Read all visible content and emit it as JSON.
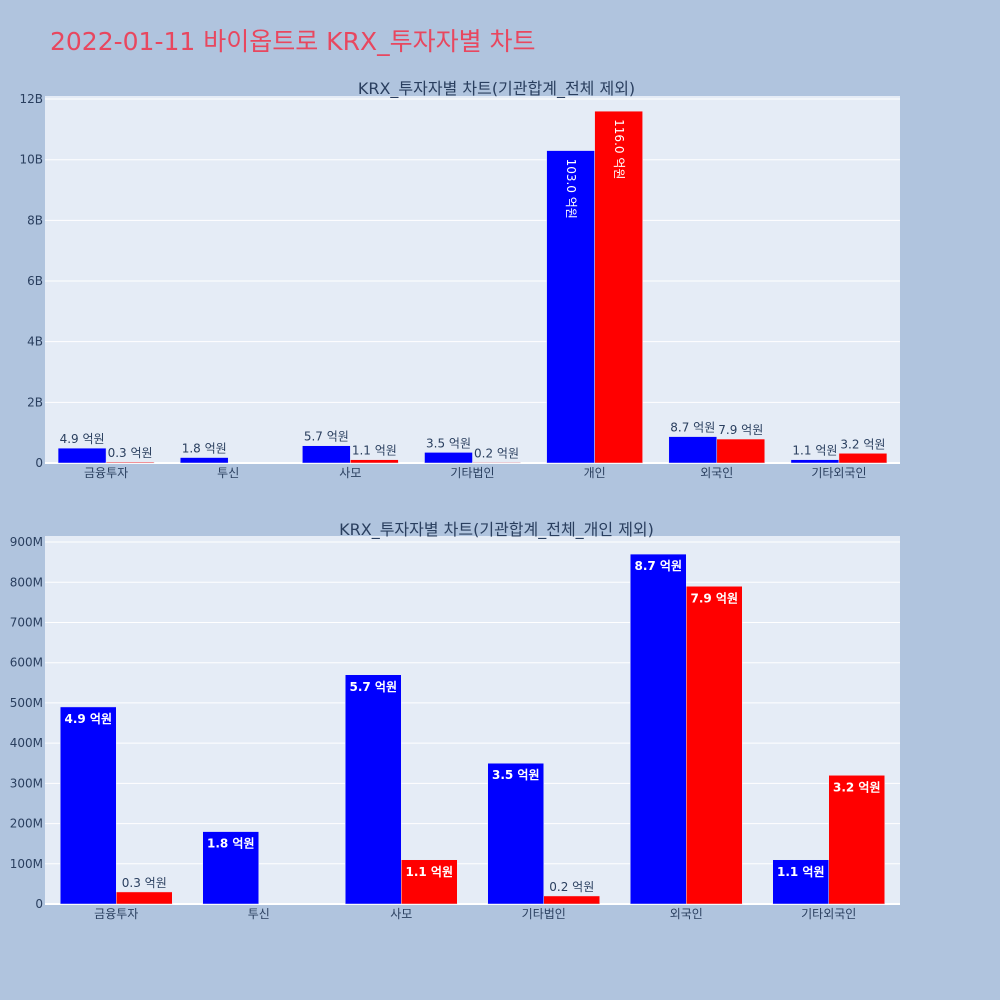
{
  "page": {
    "title": "2022-01-11 바이옵트로 KRX_투자자별 차트"
  },
  "chart_data": [
    {
      "type": "bar",
      "title": "KRX_투자자별 차트(기관합계_전체 제외)",
      "categories": [
        "금융투자",
        "투신",
        "사모",
        "기타법인",
        "개인",
        "외국인",
        "기타외국인"
      ],
      "series": [
        {
          "color": "#0000ff",
          "values": [
            490000000,
            180000000,
            570000000,
            350000000,
            10300000000,
            870000000,
            110000000
          ],
          "labels": [
            "4.9 억원",
            "1.8 억원",
            "5.7 억원",
            "3.5 억원",
            "103.0 억원",
            "8.7 억원",
            "1.1 억원"
          ]
        },
        {
          "color": "#ff0000",
          "values": [
            30000000,
            0,
            110000000,
            20000000,
            11600000000,
            790000000,
            320000000
          ],
          "labels": [
            "0.3 억원",
            "",
            "1.1 억원",
            "0.2 억원",
            "116.0 억원",
            "7.9 억원",
            "3.2 억원"
          ]
        }
      ],
      "yticks": [
        0,
        2000000000,
        4000000000,
        6000000000,
        8000000000,
        10000000000,
        12000000000
      ],
      "ytick_labels": [
        "0",
        "2B",
        "4B",
        "6B",
        "8B",
        "10B",
        "12B"
      ],
      "ylim": [
        0,
        12100000000
      ],
      "xlabel": "",
      "ylabel": "",
      "grid": true
    },
    {
      "type": "bar",
      "title": "KRX_투자자별 차트(기관합계_전체_개인 제외)",
      "categories": [
        "금융투자",
        "투신",
        "사모",
        "기타법인",
        "외국인",
        "기타외국인"
      ],
      "series": [
        {
          "color": "#0000ff",
          "values": [
            490000000,
            180000000,
            570000000,
            350000000,
            870000000,
            110000000
          ],
          "labels": [
            "4.9 억원",
            "1.8 억원",
            "5.7 억원",
            "3.5 억원",
            "8.7 억원",
            "1.1 억원"
          ]
        },
        {
          "color": "#ff0000",
          "values": [
            30000000,
            0,
            110000000,
            20000000,
            790000000,
            320000000
          ],
          "labels": [
            "0.3 억원",
            "",
            "1.1 억원",
            "0.2 억원",
            "7.9 억원",
            "3.2 억원"
          ]
        }
      ],
      "yticks": [
        0,
        100000000,
        200000000,
        300000000,
        400000000,
        500000000,
        600000000,
        700000000,
        800000000,
        900000000
      ],
      "ytick_labels": [
        "0",
        "100M",
        "200M",
        "300M",
        "400M",
        "500M",
        "600M",
        "700M",
        "800M",
        "900M"
      ],
      "ylim": [
        0,
        915000000
      ],
      "xlabel": "",
      "ylabel": "",
      "grid": true
    }
  ]
}
